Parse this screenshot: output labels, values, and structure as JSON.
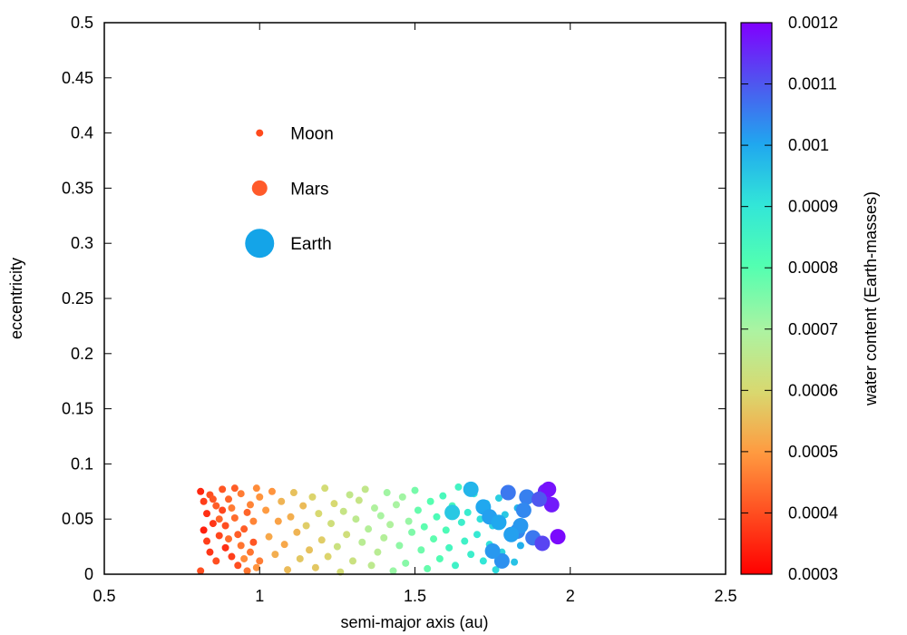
{
  "chart_data": {
    "type": "scatter",
    "title": "",
    "xlabel": "semi-major axis (au)",
    "ylabel": "eccentricity",
    "xlim": [
      0.5,
      2.5
    ],
    "ylim": [
      0,
      0.5
    ],
    "xticks": [
      0.5,
      1,
      1.5,
      2,
      2.5
    ],
    "xtick_labels": [
      "0.5",
      "1",
      "1.5",
      "2",
      "2.5"
    ],
    "yticks": [
      0,
      0.05,
      0.1,
      0.15,
      0.2,
      0.25,
      0.3,
      0.35,
      0.4,
      0.45,
      0.5
    ],
    "ytick_labels": [
      "0",
      "0.05",
      "0.1",
      "0.15",
      "0.2",
      "0.25",
      "0.3",
      "0.35",
      "0.4",
      "0.45",
      "0.5"
    ],
    "grid": false,
    "colorbar": {
      "label": "water content (Earth-masses)",
      "min": 0.0003,
      "max": 0.0012,
      "ticks": [
        0.0003,
        0.0004,
        0.0005,
        0.0006,
        0.0007,
        0.0008,
        0.0009,
        0.001,
        0.0011,
        0.0012
      ],
      "tick_labels": [
        "0.0003",
        "0.0004",
        "0.0005",
        "0.0006",
        "0.0007",
        "0.0008",
        "0.0009",
        "0.001",
        "0.0011",
        "0.0012"
      ],
      "colormap": "rainbow"
    },
    "size_legend": [
      {
        "name": "Moon",
        "a": 1.0,
        "e": 0.4,
        "color": "#ff4a1c"
      },
      {
        "name": "Mars",
        "a": 1.0,
        "e": 0.35,
        "color": "#ff5a2a"
      },
      {
        "name": "Earth",
        "a": 1.0,
        "e": 0.3,
        "color": "#14a4e8"
      }
    ],
    "series": [
      {
        "marker_scale": "Moon",
        "points": [
          [
            0.81,
            0.075,
            0.00035
          ],
          [
            0.82,
            0.066,
            0.00038
          ],
          [
            0.83,
            0.055,
            0.00036
          ],
          [
            0.84,
            0.072,
            0.0004
          ],
          [
            0.85,
            0.046,
            0.00037
          ],
          [
            0.86,
            0.062,
            0.00042
          ],
          [
            0.87,
            0.035,
            0.00039
          ],
          [
            0.88,
            0.077,
            0.00041
          ],
          [
            0.89,
            0.024,
            0.00036
          ],
          [
            0.9,
            0.068,
            0.00043
          ],
          [
            0.91,
            0.016,
            0.00038
          ],
          [
            0.92,
            0.051,
            0.00044
          ],
          [
            0.93,
            0.008,
            0.0004
          ],
          [
            0.94,
            0.073,
            0.00046
          ],
          [
            0.95,
            0.041,
            0.00042
          ],
          [
            0.96,
            0.003,
            0.00045
          ],
          [
            0.97,
            0.063,
            0.00047
          ],
          [
            0.98,
            0.029,
            0.00041
          ],
          [
            0.99,
            0.078,
            0.00048
          ],
          [
            1.0,
            0.012,
            0.00046
          ],
          [
            0.82,
            0.04,
            0.00034
          ],
          [
            0.84,
            0.02,
            0.00037
          ],
          [
            0.86,
            0.012,
            0.0004
          ],
          [
            0.88,
            0.058,
            0.00039
          ],
          [
            0.9,
            0.032,
            0.00044
          ],
          [
            0.92,
            0.078,
            0.00042
          ],
          [
            0.94,
            0.026,
            0.00045
          ],
          [
            0.96,
            0.056,
            0.00043
          ],
          [
            0.98,
            0.048,
            0.00047
          ],
          [
            1.0,
            0.07,
            0.00049
          ],
          [
            0.81,
            0.003,
            0.0004
          ],
          [
            0.83,
            0.03,
            0.00038
          ],
          [
            0.85,
            0.068,
            0.00041
          ],
          [
            0.87,
            0.05,
            0.00043
          ],
          [
            0.89,
            0.044,
            0.0004
          ],
          [
            0.91,
            0.06,
            0.00046
          ],
          [
            0.93,
            0.036,
            0.00042
          ],
          [
            0.95,
            0.014,
            0.00048
          ],
          [
            0.97,
            0.02,
            0.00045
          ],
          [
            0.99,
            0.006,
            0.00049
          ]
        ]
      },
      {
        "marker_scale": "Moon",
        "points": [
          [
            1.02,
            0.058,
            0.0005
          ],
          [
            1.03,
            0.034,
            0.00052
          ],
          [
            1.04,
            0.075,
            0.00049
          ],
          [
            1.05,
            0.018,
            0.00053
          ],
          [
            1.06,
            0.048,
            0.00051
          ],
          [
            1.07,
            0.066,
            0.00054
          ],
          [
            1.08,
            0.027,
            0.00052
          ],
          [
            1.09,
            0.004,
            0.00055
          ],
          [
            1.1,
            0.052,
            0.00053
          ],
          [
            1.11,
            0.074,
            0.00056
          ],
          [
            1.12,
            0.038,
            0.00054
          ],
          [
            1.13,
            0.014,
            0.00057
          ],
          [
            1.14,
            0.062,
            0.00055
          ],
          [
            1.15,
            0.044,
            0.00058
          ],
          [
            1.16,
            0.022,
            0.00056
          ],
          [
            1.17,
            0.07,
            0.00059
          ],
          [
            1.18,
            0.006,
            0.00057
          ],
          [
            1.19,
            0.055,
            0.0006
          ],
          [
            1.2,
            0.031,
            0.00058
          ],
          [
            1.21,
            0.078,
            0.00061
          ],
          [
            1.22,
            0.016,
            0.00059
          ],
          [
            1.23,
            0.046,
            0.00062
          ],
          [
            1.24,
            0.064,
            0.0006
          ],
          [
            1.25,
            0.025,
            0.00063
          ],
          [
            1.26,
            0.002,
            0.00061
          ],
          [
            1.27,
            0.057,
            0.00064
          ],
          [
            1.28,
            0.036,
            0.00062
          ],
          [
            1.29,
            0.072,
            0.00065
          ],
          [
            1.3,
            0.012,
            0.00063
          ],
          [
            1.31,
            0.05,
            0.00066
          ],
          [
            1.32,
            0.067,
            0.00064
          ],
          [
            1.33,
            0.029,
            0.00067
          ],
          [
            1.34,
            0.077,
            0.00065
          ],
          [
            1.35,
            0.041,
            0.00068
          ],
          [
            1.36,
            0.008,
            0.00066
          ],
          [
            1.37,
            0.06,
            0.00069
          ],
          [
            1.38,
            0.02,
            0.00067
          ],
          [
            1.39,
            0.053,
            0.0007
          ],
          [
            1.4,
            0.033,
            0.00068
          ],
          [
            1.41,
            0.074,
            0.00071
          ],
          [
            1.42,
            0.045,
            0.00069
          ],
          [
            1.43,
            0.003,
            0.00072
          ],
          [
            1.44,
            0.063,
            0.0007
          ],
          [
            1.45,
            0.026,
            0.00073
          ],
          [
            1.46,
            0.07,
            0.00071
          ],
          [
            1.47,
            0.01,
            0.00074
          ],
          [
            1.48,
            0.048,
            0.00072
          ],
          [
            1.49,
            0.038,
            0.00075
          ]
        ]
      },
      {
        "marker_scale": "Moon",
        "points": [
          [
            1.5,
            0.076,
            0.00076
          ],
          [
            1.51,
            0.058,
            0.00078
          ],
          [
            1.52,
            0.022,
            0.00077
          ],
          [
            1.53,
            0.043,
            0.00079
          ],
          [
            1.54,
            0.005,
            0.00078
          ],
          [
            1.55,
            0.066,
            0.0008
          ],
          [
            1.56,
            0.032,
            0.00079
          ],
          [
            1.57,
            0.052,
            0.00082
          ],
          [
            1.58,
            0.014,
            0.00081
          ],
          [
            1.59,
            0.071,
            0.00083
          ],
          [
            1.6,
            0.04,
            0.00082
          ],
          [
            1.61,
            0.024,
            0.00084
          ],
          [
            1.62,
            0.062,
            0.00083
          ],
          [
            1.63,
            0.008,
            0.00086
          ],
          [
            1.64,
            0.079,
            0.00085
          ],
          [
            1.65,
            0.047,
            0.00087
          ],
          [
            1.66,
            0.03,
            0.00086
          ],
          [
            1.67,
            0.056,
            0.00088
          ],
          [
            1.68,
            0.018,
            0.00087
          ],
          [
            1.69,
            0.073,
            0.0009
          ],
          [
            1.7,
            0.036,
            0.00089
          ],
          [
            1.71,
            0.05,
            0.00091
          ],
          [
            1.72,
            0.012,
            0.0009
          ],
          [
            1.73,
            0.064,
            0.00092
          ],
          [
            1.74,
            0.027,
            0.00091
          ],
          [
            1.75,
            0.044,
            0.00093
          ],
          [
            1.76,
            0.004,
            0.00092
          ],
          [
            1.77,
            0.069,
            0.00094
          ],
          [
            1.78,
            0.02,
            0.00093
          ],
          [
            1.79,
            0.054,
            0.00095
          ],
          [
            1.8,
            0.034,
            0.00096
          ],
          [
            1.81,
            0.075,
            0.00097
          ],
          [
            1.82,
            0.011,
            0.00096
          ],
          [
            1.83,
            0.06,
            0.00098
          ],
          [
            1.84,
            0.026,
            0.00099
          ]
        ]
      },
      {
        "marker_scale": "Mars",
        "points": [
          [
            1.68,
            0.077,
            0.00098
          ],
          [
            1.72,
            0.061,
            0.001
          ],
          [
            1.74,
            0.052,
            0.00101
          ],
          [
            1.77,
            0.047,
            0.001
          ],
          [
            1.8,
            0.074,
            0.00106
          ],
          [
            1.83,
            0.039,
            0.00104
          ],
          [
            1.86,
            0.07,
            0.00105
          ],
          [
            1.88,
            0.033,
            0.00106
          ],
          [
            1.91,
            0.028,
            0.00112
          ],
          [
            1.92,
            0.075,
            0.00116
          ],
          [
            1.93,
            0.077,
            0.00118
          ],
          [
            1.94,
            0.063,
            0.00117
          ],
          [
            1.96,
            0.034,
            0.00119
          ],
          [
            1.9,
            0.068,
            0.0011
          ],
          [
            1.78,
            0.012,
            0.00103
          ],
          [
            1.75,
            0.021,
            0.00102
          ],
          [
            1.62,
            0.056,
            0.00095
          ],
          [
            1.85,
            0.058,
            0.00104
          ],
          [
            1.84,
            0.044,
            0.00102
          ],
          [
            1.81,
            0.036,
            0.00101
          ]
        ]
      }
    ]
  }
}
